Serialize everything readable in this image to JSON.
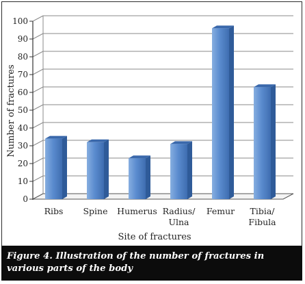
{
  "chart_data": {
    "type": "bar",
    "categories": [
      [
        "Ribs"
      ],
      [
        "Spine"
      ],
      [
        "Humerus"
      ],
      [
        "Radius/",
        "Ulna"
      ],
      [
        "Femur"
      ],
      [
        "Tibia/",
        "Fibula"
      ]
    ],
    "values": [
      34,
      32,
      23,
      31,
      96,
      63
    ],
    "ylabel": "Number of fractures",
    "xlabel": "Site of fractures",
    "ylim": [
      0,
      100
    ],
    "yticks": [
      0,
      10,
      20,
      30,
      40,
      50,
      60,
      70,
      80,
      90,
      100
    ],
    "grid": true,
    "legend": "none",
    "bar_color": "#4f7fc4"
  },
  "caption": "Figure 4. Illustration of the number of fractures in various parts of the body"
}
